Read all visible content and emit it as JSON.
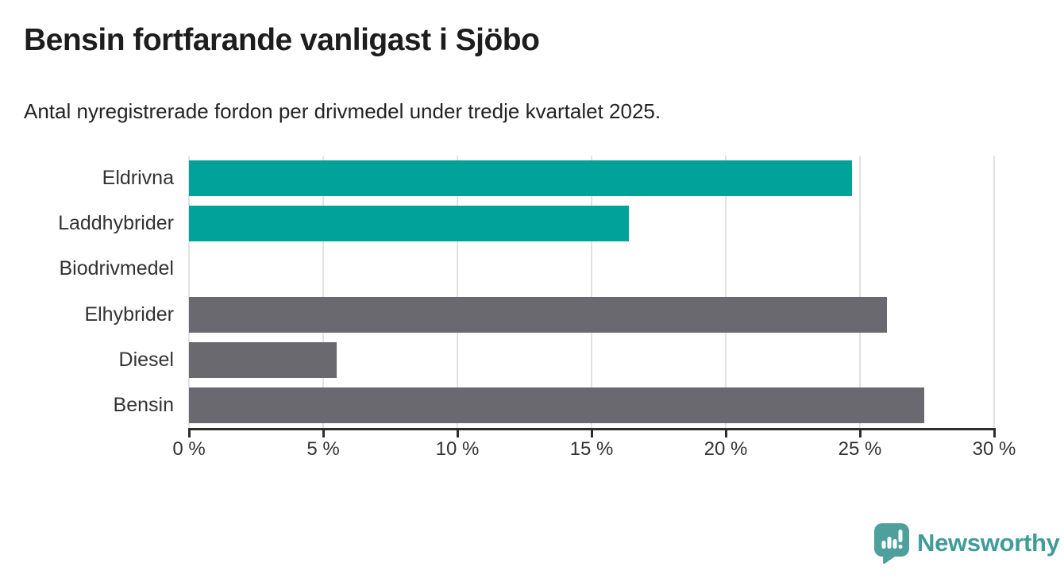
{
  "header": {
    "title": "Bensin fortfarande vanligast i Sjöbo",
    "subtitle": "Antal nyregistrerade fordon per drivmedel under tredje kvartalet 2025."
  },
  "chart_data": {
    "type": "bar",
    "orientation": "horizontal",
    "title": "Bensin fortfarande vanligast i Sjöbo",
    "subtitle": "Antal nyregistrerade fordon per drivmedel under tredje kvartalet 2025.",
    "categories": [
      "Eldrivna",
      "Laddhybrider",
      "Biodrivmedel",
      "Elhybrider",
      "Diesel",
      "Bensin"
    ],
    "values": [
      24.7,
      16.4,
      0,
      26.0,
      5.5,
      27.4
    ],
    "unit": "%",
    "xlim": [
      0,
      30
    ],
    "x_ticks": [
      0,
      5,
      10,
      15,
      20,
      25,
      30
    ],
    "x_tick_labels": [
      "0 %",
      "5 %",
      "10 %",
      "15 %",
      "20 %",
      "25 %",
      "30 %"
    ],
    "bar_colors": [
      "#00a29a",
      "#00a29a",
      "#00a29a",
      "#6b6970",
      "#6b6970",
      "#6b6970"
    ],
    "grid": "vertical",
    "legend": "none",
    "axis_color": "#2d2d2d",
    "grid_color": "#e2e2e2",
    "label_color": "#333333"
  },
  "branding": {
    "logo_text": "Newsworthy",
    "logo_color": "#3f9c98",
    "icon_color": "#4da09c",
    "icon_glyph_color": "#ffffff",
    "logo_icon": "newsworthy-speech-bubble-chart-icon"
  }
}
